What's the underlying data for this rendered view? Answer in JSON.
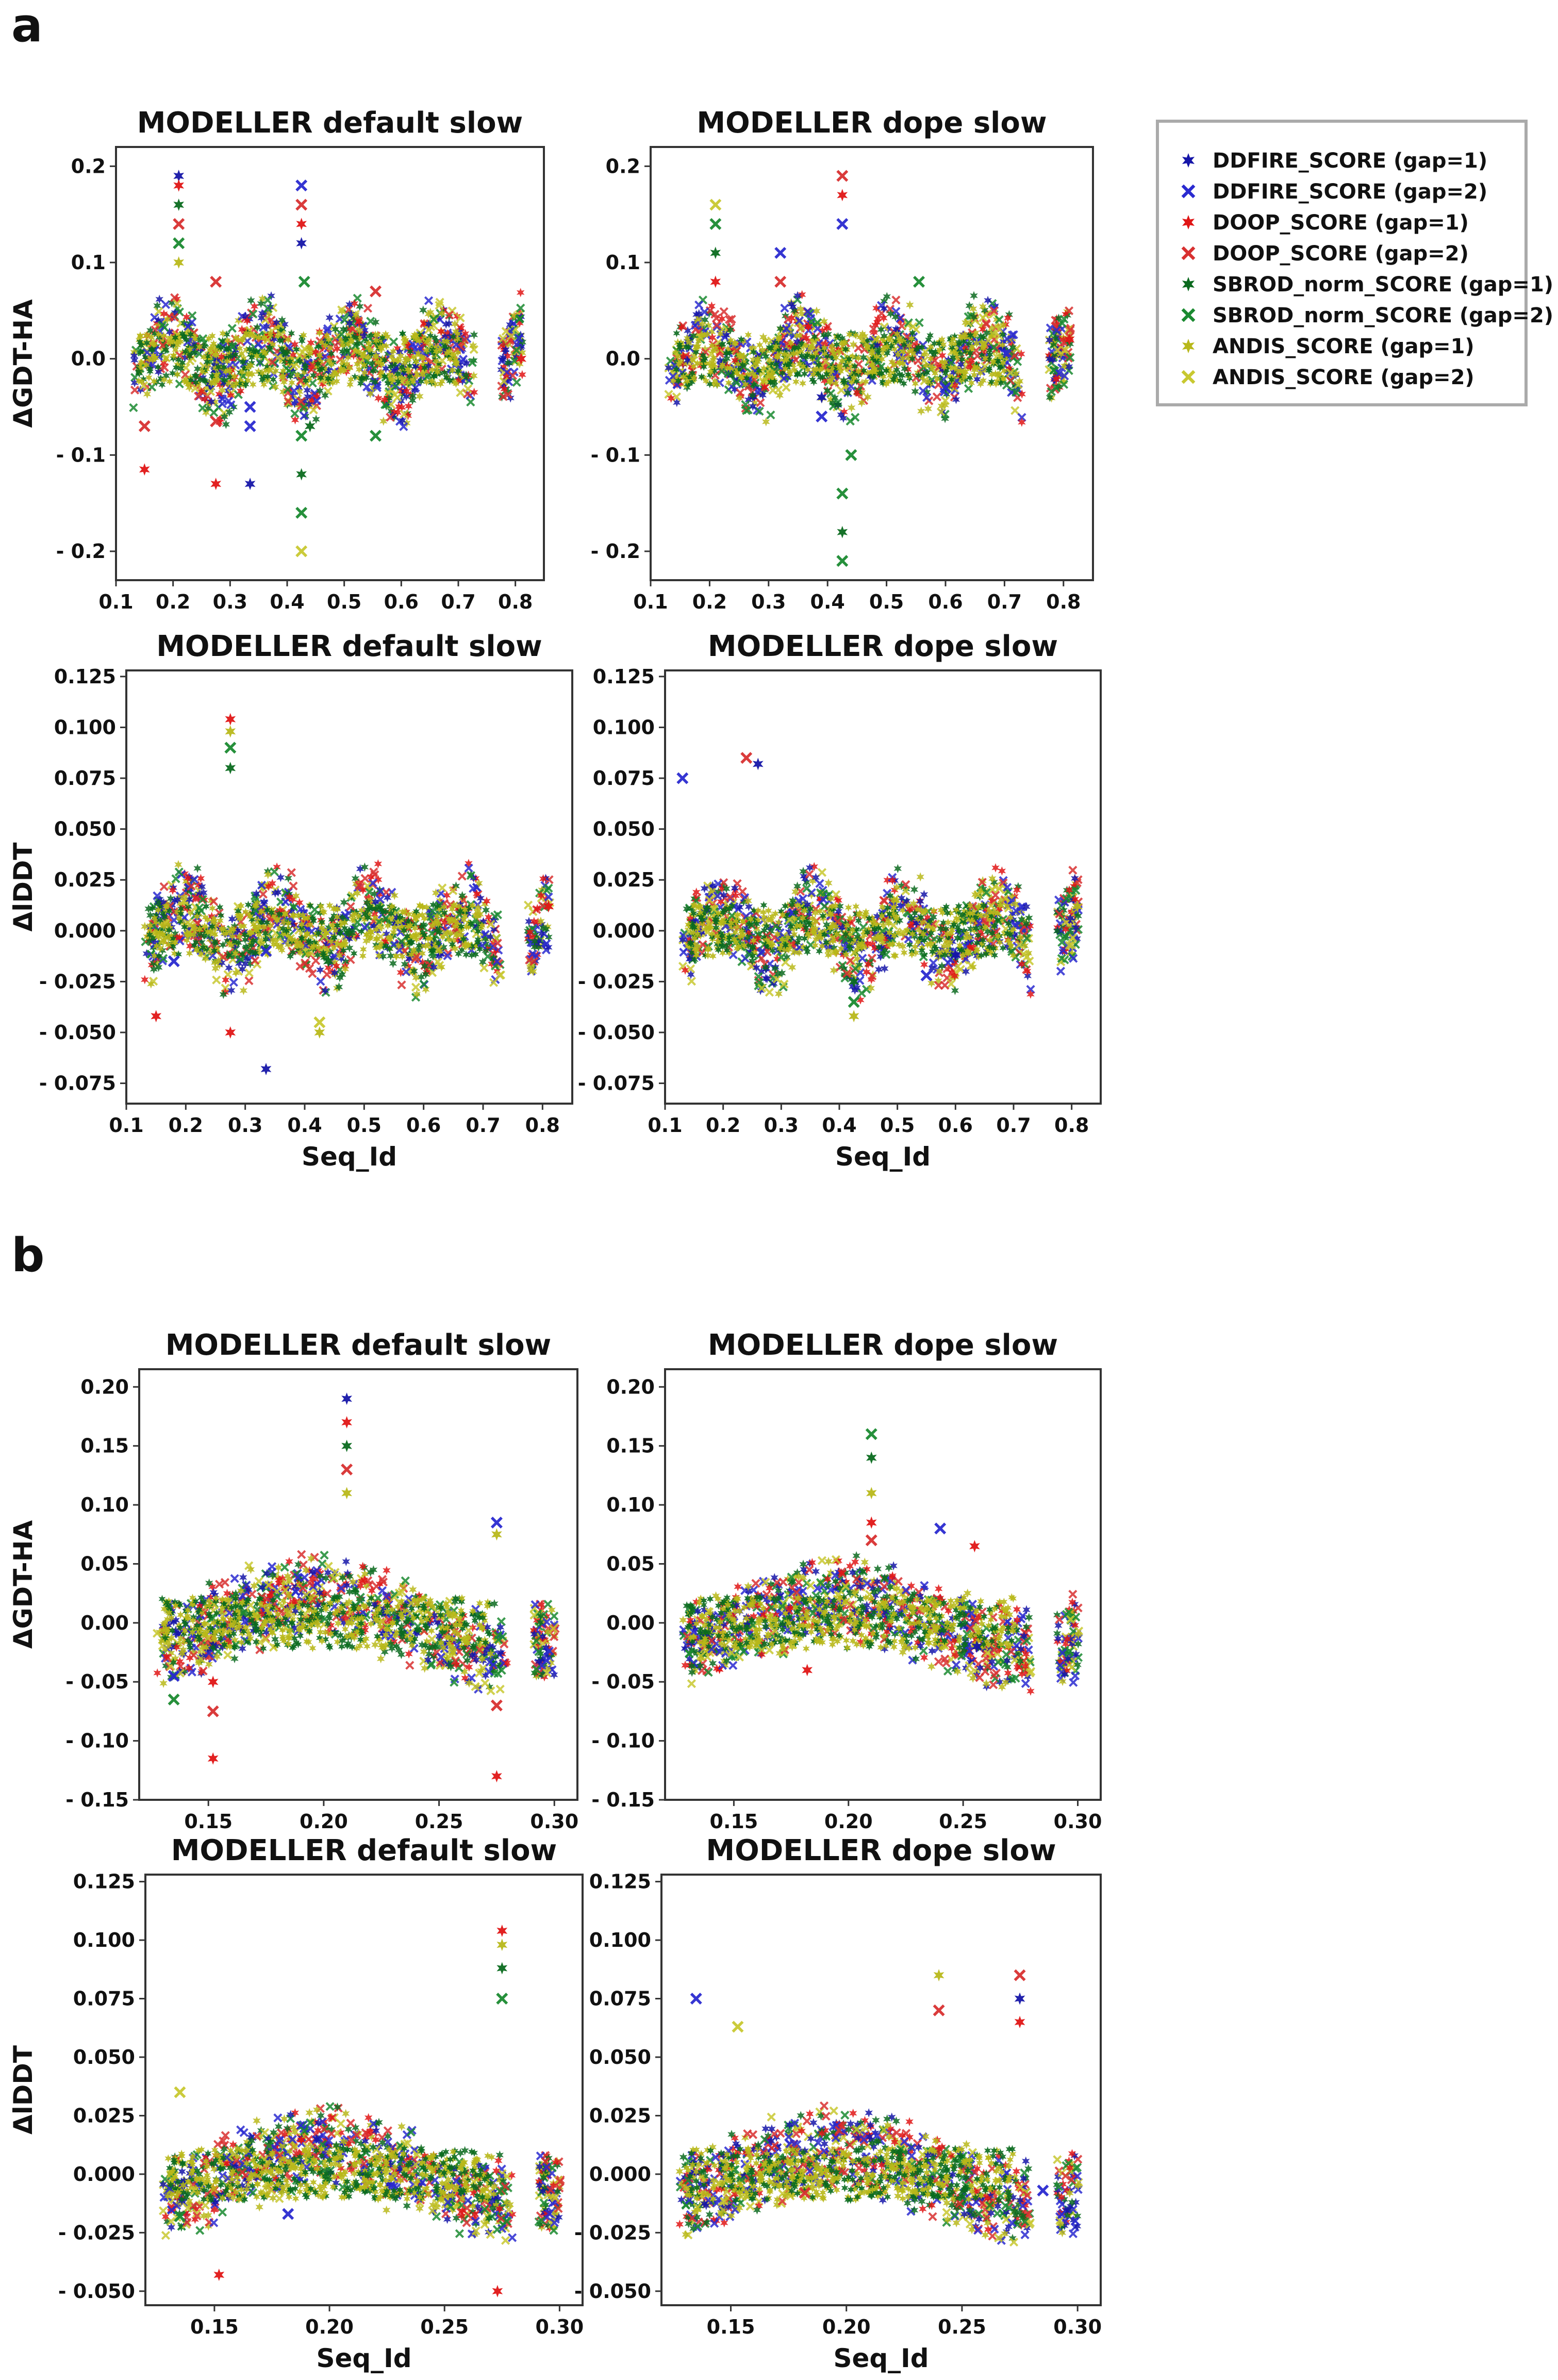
{
  "figure": {
    "label_a": "a",
    "label_b": "b"
  },
  "legend": {
    "entries": [
      {
        "label": "DDFIRE_SCORE (gap=1)",
        "marker": "star",
        "color": "#1515a8"
      },
      {
        "label": "DDFIRE_SCORE (gap=2)",
        "marker": "x",
        "color": "#2a2ad0"
      },
      {
        "label": "DOOP_SCORE (gap=1)",
        "marker": "star",
        "color": "#e01515"
      },
      {
        "label": "DOOP_SCORE (gap=2)",
        "marker": "x",
        "color": "#d83030"
      },
      {
        "label": "SBROD_norm_SCORE (gap=1)",
        "marker": "star",
        "color": "#0a6a1e"
      },
      {
        "label": "SBROD_norm_SCORE (gap=2)",
        "marker": "x",
        "color": "#1a8a30"
      },
      {
        "label": "ANDIS_SCORE (gap=1)",
        "marker": "star",
        "color": "#b8b81a"
      },
      {
        "label": "ANDIS_SCORE (gap=2)",
        "marker": "x",
        "color": "#c8c830"
      }
    ]
  },
  "chart_data": [
    {
      "id": "a-gdt-default",
      "panel": "a",
      "type": "scatter",
      "title": "MODELLER default slow",
      "xlabel": "",
      "ylabel": "ΔGDT-HA",
      "xlim": [
        0.1,
        0.85
      ],
      "ylim": [
        -0.23,
        0.22
      ],
      "xticks": [
        0.1,
        0.2,
        0.3,
        0.4,
        0.5,
        0.6,
        0.7,
        0.8
      ],
      "xtick_labels": [
        "0.1",
        "0.2",
        "0.3",
        "0.4",
        "0.5",
        "0.6",
        "0.7",
        "0.8"
      ],
      "yticks": [
        -0.2,
        -0.1,
        0.0,
        0.1,
        0.2
      ],
      "ytick_labels": [
        "- 0.2",
        "- 0.1",
        "0.0",
        "0.1",
        "0.2"
      ],
      "spikes": [
        {
          "x": 0.21,
          "y": 0.19,
          "series": 0
        },
        {
          "x": 0.21,
          "y": 0.18,
          "series": 2
        },
        {
          "x": 0.21,
          "y": 0.16,
          "series": 4
        },
        {
          "x": 0.21,
          "y": 0.14,
          "series": 3
        },
        {
          "x": 0.21,
          "y": 0.12,
          "series": 5
        },
        {
          "x": 0.21,
          "y": 0.1,
          "series": 6
        },
        {
          "x": 0.425,
          "y": 0.18,
          "series": 1
        },
        {
          "x": 0.425,
          "y": 0.16,
          "series": 3
        },
        {
          "x": 0.425,
          "y": 0.14,
          "series": 2
        },
        {
          "x": 0.425,
          "y": 0.12,
          "series": 0
        },
        {
          "x": 0.43,
          "y": 0.08,
          "series": 5
        },
        {
          "x": 0.425,
          "y": -0.08,
          "series": 5
        },
        {
          "x": 0.425,
          "y": -0.12,
          "series": 4
        },
        {
          "x": 0.425,
          "y": -0.16,
          "series": 5
        },
        {
          "x": 0.425,
          "y": -0.2,
          "series": 7
        },
        {
          "x": 0.44,
          "y": -0.07,
          "series": 4
        },
        {
          "x": 0.15,
          "y": -0.115,
          "series": 2
        },
        {
          "x": 0.15,
          "y": -0.07,
          "series": 3
        },
        {
          "x": 0.275,
          "y": -0.13,
          "series": 2
        },
        {
          "x": 0.275,
          "y": -0.065,
          "series": 3
        },
        {
          "x": 0.335,
          "y": -0.13,
          "series": 0
        },
        {
          "x": 0.335,
          "y": -0.07,
          "series": 1
        },
        {
          "x": 0.335,
          "y": -0.05,
          "series": 1
        },
        {
          "x": 0.275,
          "y": 0.08,
          "series": 3
        },
        {
          "x": 0.555,
          "y": 0.07,
          "series": 3
        },
        {
          "x": 0.555,
          "y": -0.08,
          "series": 5
        },
        {
          "x": 0.81,
          "y": 0.0,
          "series": 2
        }
      ]
    },
    {
      "id": "a-gdt-dope",
      "panel": "a",
      "type": "scatter",
      "title": "MODELLER dope slow",
      "xlabel": "",
      "ylabel": "",
      "xlim": [
        0.1,
        0.85
      ],
      "ylim": [
        -0.23,
        0.22
      ],
      "xticks": [
        0.1,
        0.2,
        0.3,
        0.4,
        0.5,
        0.6,
        0.7,
        0.8
      ],
      "xtick_labels": [
        "0.1",
        "0.2",
        "0.3",
        "0.4",
        "0.5",
        "0.6",
        "0.7",
        "0.8"
      ],
      "yticks": [
        -0.2,
        -0.1,
        0.0,
        0.1,
        0.2
      ],
      "ytick_labels": [
        "- 0.2",
        "- 0.1",
        "0.0",
        "0.1",
        "0.2"
      ],
      "spikes": [
        {
          "x": 0.21,
          "y": 0.16,
          "series": 7
        },
        {
          "x": 0.21,
          "y": 0.14,
          "series": 5
        },
        {
          "x": 0.21,
          "y": 0.11,
          "series": 4
        },
        {
          "x": 0.21,
          "y": 0.08,
          "series": 2
        },
        {
          "x": 0.32,
          "y": 0.11,
          "series": 1
        },
        {
          "x": 0.32,
          "y": 0.08,
          "series": 3
        },
        {
          "x": 0.425,
          "y": 0.19,
          "series": 3
        },
        {
          "x": 0.425,
          "y": 0.17,
          "series": 2
        },
        {
          "x": 0.425,
          "y": 0.14,
          "series": 1
        },
        {
          "x": 0.425,
          "y": -0.14,
          "series": 5
        },
        {
          "x": 0.425,
          "y": -0.18,
          "series": 4
        },
        {
          "x": 0.425,
          "y": -0.21,
          "series": 5
        },
        {
          "x": 0.44,
          "y": -0.1,
          "series": 5
        },
        {
          "x": 0.39,
          "y": -0.06,
          "series": 1
        },
        {
          "x": 0.39,
          "y": -0.04,
          "series": 0
        },
        {
          "x": 0.555,
          "y": 0.08,
          "series": 5
        },
        {
          "x": 0.81,
          "y": 0.02,
          "series": 2
        },
        {
          "x": 0.6,
          "y": -0.03,
          "series": 1
        }
      ]
    },
    {
      "id": "a-lddt-default",
      "panel": "a",
      "type": "scatter",
      "title": "MODELLER default slow",
      "xlabel": "Seq_Id",
      "ylabel": "ΔlDDT",
      "xlim": [
        0.1,
        0.85
      ],
      "ylim": [
        -0.085,
        0.128
      ],
      "xticks": [
        0.1,
        0.2,
        0.3,
        0.4,
        0.5,
        0.6,
        0.7,
        0.8
      ],
      "xtick_labels": [
        "0.1",
        "0.2",
        "0.3",
        "0.4",
        "0.5",
        "0.6",
        "0.7",
        "0.8"
      ],
      "yticks": [
        -0.075,
        -0.05,
        -0.025,
        0.0,
        0.025,
        0.05,
        0.075,
        0.1,
        0.125
      ],
      "ytick_labels": [
        "- 0.075",
        "- 0.050",
        "- 0.025",
        "0.000",
        "0.025",
        "0.050",
        "0.075",
        "0.100",
        "0.125"
      ],
      "spikes": [
        {
          "x": 0.275,
          "y": 0.104,
          "series": 2
        },
        {
          "x": 0.275,
          "y": 0.098,
          "series": 6
        },
        {
          "x": 0.275,
          "y": 0.09,
          "series": 5
        },
        {
          "x": 0.275,
          "y": 0.08,
          "series": 4
        },
        {
          "x": 0.15,
          "y": -0.042,
          "series": 2
        },
        {
          "x": 0.275,
          "y": -0.05,
          "series": 2
        },
        {
          "x": 0.335,
          "y": -0.068,
          "series": 0
        },
        {
          "x": 0.335,
          "y": -0.01,
          "series": 1
        },
        {
          "x": 0.425,
          "y": -0.045,
          "series": 7
        },
        {
          "x": 0.425,
          "y": -0.05,
          "series": 6
        },
        {
          "x": 0.44,
          "y": -0.015,
          "series": 4
        },
        {
          "x": 0.18,
          "y": -0.015,
          "series": 1
        },
        {
          "x": 0.81,
          "y": 0.012,
          "series": 2
        }
      ]
    },
    {
      "id": "a-lddt-dope",
      "panel": "a",
      "type": "scatter",
      "title": "MODELLER dope slow",
      "xlabel": "Seq_Id",
      "ylabel": "",
      "xlim": [
        0.1,
        0.85
      ],
      "ylim": [
        -0.085,
        0.128
      ],
      "xticks": [
        0.1,
        0.2,
        0.3,
        0.4,
        0.5,
        0.6,
        0.7,
        0.8
      ],
      "xtick_labels": [
        "0.1",
        "0.2",
        "0.3",
        "0.4",
        "0.5",
        "0.6",
        "0.7",
        "0.8"
      ],
      "yticks": [
        -0.075,
        -0.05,
        -0.025,
        0.0,
        0.025,
        0.05,
        0.075,
        0.1,
        0.125
      ],
      "ytick_labels": [
        "- 0.075",
        "- 0.050",
        "- 0.025",
        "0.000",
        "0.025",
        "0.050",
        "0.075",
        "0.100",
        "0.125"
      ],
      "spikes": [
        {
          "x": 0.13,
          "y": 0.075,
          "series": 1
        },
        {
          "x": 0.24,
          "y": 0.085,
          "series": 3
        },
        {
          "x": 0.26,
          "y": 0.082,
          "series": 0
        },
        {
          "x": 0.425,
          "y": -0.035,
          "series": 5
        },
        {
          "x": 0.425,
          "y": -0.042,
          "series": 6
        },
        {
          "x": 0.425,
          "y": -0.025,
          "series": 4
        },
        {
          "x": 0.55,
          "y": -0.022,
          "series": 1
        },
        {
          "x": 0.6,
          "y": -0.012,
          "series": 0
        },
        {
          "x": 0.81,
          "y": 0.012,
          "series": 6
        }
      ]
    },
    {
      "id": "b-gdt-default",
      "panel": "b",
      "type": "scatter",
      "title": "MODELLER default slow",
      "xlabel": "",
      "ylabel": "ΔGDT-HA",
      "xlim": [
        0.12,
        0.31
      ],
      "ylim": [
        -0.15,
        0.215
      ],
      "xticks": [
        0.15,
        0.2,
        0.25,
        0.3
      ],
      "xtick_labels": [
        "0.15",
        "0.20",
        "0.25",
        "0.30"
      ],
      "yticks": [
        -0.15,
        -0.1,
        -0.05,
        0.0,
        0.05,
        0.1,
        0.15,
        0.2
      ],
      "ytick_labels": [
        "- 0.15",
        "- 0.10",
        "- 0.05",
        "0.00",
        "0.05",
        "0.10",
        "0.15",
        "0.20"
      ],
      "spikes": [
        {
          "x": 0.21,
          "y": 0.19,
          "series": 0
        },
        {
          "x": 0.21,
          "y": 0.17,
          "series": 2
        },
        {
          "x": 0.21,
          "y": 0.15,
          "series": 4
        },
        {
          "x": 0.21,
          "y": 0.13,
          "series": 3
        },
        {
          "x": 0.21,
          "y": 0.11,
          "series": 6
        },
        {
          "x": 0.152,
          "y": -0.115,
          "series": 2
        },
        {
          "x": 0.152,
          "y": -0.075,
          "series": 3
        },
        {
          "x": 0.152,
          "y": -0.05,
          "series": 2
        },
        {
          "x": 0.275,
          "y": -0.13,
          "series": 2
        },
        {
          "x": 0.275,
          "y": -0.07,
          "series": 3
        },
        {
          "x": 0.135,
          "y": -0.065,
          "series": 5
        },
        {
          "x": 0.135,
          "y": -0.045,
          "series": 1
        },
        {
          "x": 0.275,
          "y": 0.085,
          "series": 1
        },
        {
          "x": 0.275,
          "y": 0.075,
          "series": 6
        }
      ]
    },
    {
      "id": "b-gdt-dope",
      "panel": "b",
      "type": "scatter",
      "title": "MODELLER dope slow",
      "xlabel": "",
      "ylabel": "",
      "xlim": [
        0.12,
        0.31
      ],
      "ylim": [
        -0.15,
        0.215
      ],
      "xticks": [
        0.15,
        0.2,
        0.25,
        0.3
      ],
      "xtick_labels": [
        "0.15",
        "0.20",
        "0.25",
        "0.30"
      ],
      "yticks": [
        -0.15,
        -0.1,
        -0.05,
        0.0,
        0.05,
        0.1,
        0.15,
        0.2
      ],
      "ytick_labels": [
        "- 0.15",
        "- 0.10",
        "- 0.05",
        "0.00",
        "0.05",
        "0.10",
        "0.15",
        "0.20"
      ],
      "spikes": [
        {
          "x": 0.21,
          "y": 0.16,
          "series": 5
        },
        {
          "x": 0.21,
          "y": 0.14,
          "series": 4
        },
        {
          "x": 0.21,
          "y": 0.11,
          "series": 6
        },
        {
          "x": 0.21,
          "y": 0.085,
          "series": 2
        },
        {
          "x": 0.21,
          "y": 0.07,
          "series": 3
        },
        {
          "x": 0.24,
          "y": 0.08,
          "series": 1
        },
        {
          "x": 0.255,
          "y": 0.065,
          "series": 2
        },
        {
          "x": 0.256,
          "y": -0.02,
          "series": 0
        },
        {
          "x": 0.182,
          "y": -0.04,
          "series": 2
        }
      ]
    },
    {
      "id": "b-lddt-default",
      "panel": "b",
      "type": "scatter",
      "title": "MODELLER default slow",
      "xlabel": "Seq_Id",
      "ylabel": "ΔlDDT",
      "xlim": [
        0.12,
        0.31
      ],
      "ylim": [
        -0.056,
        0.128
      ],
      "xticks": [
        0.15,
        0.2,
        0.25,
        0.3
      ],
      "xtick_labels": [
        "0.15",
        "0.20",
        "0.25",
        "0.30"
      ],
      "yticks": [
        -0.05,
        -0.025,
        0.0,
        0.025,
        0.05,
        0.075,
        0.1,
        0.125
      ],
      "ytick_labels": [
        "- 0.050",
        "- 0.025",
        "0.000",
        "0.025",
        "0.050",
        "0.075",
        "0.100",
        "0.125"
      ],
      "spikes": [
        {
          "x": 0.275,
          "y": 0.104,
          "series": 2
        },
        {
          "x": 0.275,
          "y": 0.098,
          "series": 6
        },
        {
          "x": 0.275,
          "y": 0.088,
          "series": 4
        },
        {
          "x": 0.275,
          "y": 0.075,
          "series": 5
        },
        {
          "x": 0.152,
          "y": -0.043,
          "series": 2
        },
        {
          "x": 0.273,
          "y": -0.05,
          "series": 2
        },
        {
          "x": 0.182,
          "y": -0.017,
          "series": 1
        },
        {
          "x": 0.135,
          "y": -0.018,
          "series": 5
        },
        {
          "x": 0.135,
          "y": 0.035,
          "series": 7
        }
      ]
    },
    {
      "id": "b-lddt-dope",
      "panel": "b",
      "type": "scatter",
      "title": "MODELLER dope slow",
      "xlabel": "Seq_Id",
      "ylabel": "",
      "xlim": [
        0.12,
        0.31
      ],
      "ylim": [
        -0.056,
        0.128
      ],
      "xticks": [
        0.15,
        0.2,
        0.25,
        0.3
      ],
      "xtick_labels": [
        "0.15",
        "0.20",
        "0.25",
        "0.30"
      ],
      "yticks": [
        -0.05,
        -0.025,
        0.0,
        0.025,
        0.05,
        0.075,
        0.1,
        0.125
      ],
      "ytick_labels": [
        "- 0.050",
        "- 0.025",
        "0.000",
        "0.025",
        "0.050",
        "0.075",
        "0.100",
        "0.125"
      ],
      "spikes": [
        {
          "x": 0.135,
          "y": 0.075,
          "series": 1
        },
        {
          "x": 0.153,
          "y": 0.063,
          "series": 7
        },
        {
          "x": 0.24,
          "y": 0.085,
          "series": 6
        },
        {
          "x": 0.24,
          "y": 0.07,
          "series": 3
        },
        {
          "x": 0.275,
          "y": 0.085,
          "series": 3
        },
        {
          "x": 0.275,
          "y": 0.075,
          "series": 0
        },
        {
          "x": 0.275,
          "y": 0.065,
          "series": 2
        },
        {
          "x": 0.182,
          "y": -0.008,
          "series": 3
        },
        {
          "x": 0.285,
          "y": -0.007,
          "series": 1
        }
      ]
    }
  ]
}
